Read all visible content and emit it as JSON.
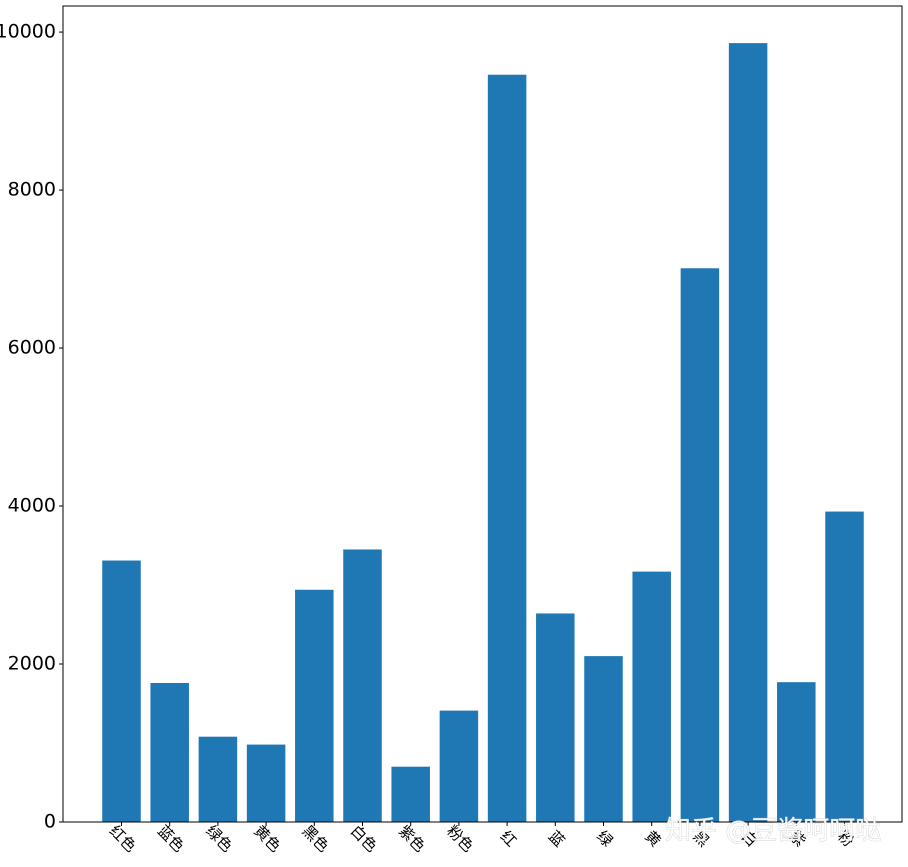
{
  "chart_data": {
    "type": "bar",
    "categories": [
      "红色",
      "蓝色",
      "绿色",
      "黄色",
      "黑色",
      "白色",
      "紫色",
      "粉色",
      "红",
      "蓝",
      "绿",
      "黄",
      "黑",
      "白",
      "紫",
      "粉"
    ],
    "values": [
      3310,
      1760,
      1080,
      980,
      2940,
      3450,
      700,
      1410,
      9460,
      2640,
      2100,
      3170,
      7010,
      9860,
      1770,
      3930
    ],
    "title": "",
    "xlabel": "",
    "ylabel": "",
    "ylim": [
      0,
      10330
    ],
    "yticks": [
      0,
      2000,
      4000,
      6000,
      8000,
      10000
    ],
    "ytick_labels": [
      "0",
      "2000",
      "4000",
      "6000",
      "8000",
      "10000"
    ],
    "grid": false,
    "legend": false,
    "bar_color": "#1f77b4",
    "xtick_rotation": "rotated"
  },
  "watermark": {
    "text": "知乎 @豆酱呵呵哒"
  }
}
